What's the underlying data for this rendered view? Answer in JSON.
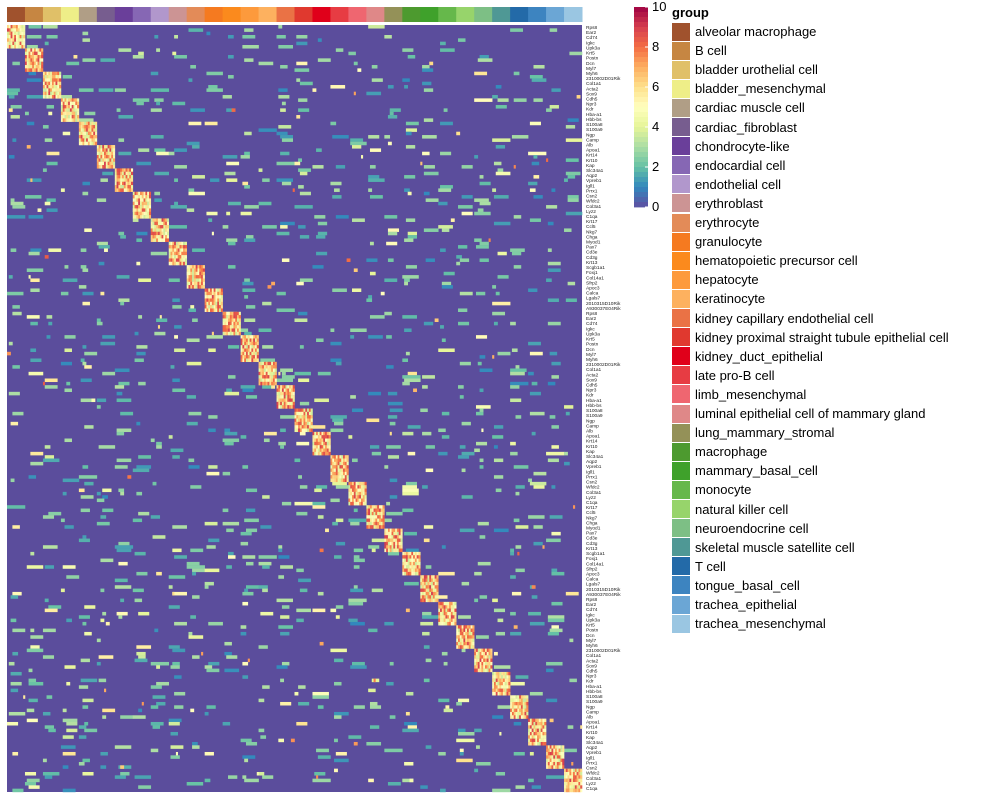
{
  "chart_data": {
    "type": "heatmap",
    "title": "",
    "colorbar": {
      "min": 0,
      "max": 10,
      "tick_labels": [
        "0",
        "2",
        "4",
        "6",
        "8",
        "10"
      ],
      "palette": [
        "#5e4fa2",
        "#3288bd",
        "#66c2a5",
        "#abdda4",
        "#e6f598",
        "#ffffbf",
        "#fee08b",
        "#fdae61",
        "#f46d43",
        "#d53e4f",
        "#9e0142"
      ]
    },
    "legend": {
      "title": "group",
      "placement": "right",
      "items": [
        {
          "label": "alveolar macrophage",
          "color": "#a0522d"
        },
        {
          "label": "B cell",
          "color": "#c68642"
        },
        {
          "label": "bladder urothelial cell",
          "color": "#e0c068"
        },
        {
          "label": "bladder_mesenchymal",
          "color": "#eeee88"
        },
        {
          "label": "cardiac muscle cell",
          "color": "#b09e86"
        },
        {
          "label": "cardiac_fibroblast",
          "color": "#775d8f"
        },
        {
          "label": "chondrocyte-like",
          "color": "#6a3f9a"
        },
        {
          "label": "endocardial cell",
          "color": "#8667b4"
        },
        {
          "label": "endothelial cell",
          "color": "#b197cc"
        },
        {
          "label": "erythroblast",
          "color": "#cc9494"
        },
        {
          "label": "erythrocyte",
          "color": "#e38b58"
        },
        {
          "label": "granulocyte",
          "color": "#f57a20"
        },
        {
          "label": "hematopoietic precursor cell",
          "color": "#fb8a1d"
        },
        {
          "label": "hepatocyte",
          "color": "#fd9a3c"
        },
        {
          "label": "keratinocyte",
          "color": "#fdb15f"
        },
        {
          "label": "kidney capillary endothelial cell",
          "color": "#ea7245"
        },
        {
          "label": "kidney proximal straight tubule epithelial cell",
          "color": "#e0392f"
        },
        {
          "label": "kidney_duct_epithelial",
          "color": "#e0001a"
        },
        {
          "label": "late pro-B cell",
          "color": "#e73c43"
        },
        {
          "label": "limb_mesenchymal",
          "color": "#ef6670"
        },
        {
          "label": "luminal epithelial cell of mammary gland",
          "color": "#df8888"
        },
        {
          "label": "lung_mammary_stromal",
          "color": "#949158"
        },
        {
          "label": "macrophage",
          "color": "#4d9a2f"
        },
        {
          "label": "mammary_basal_cell",
          "color": "#3fa12b"
        },
        {
          "label": "monocyte",
          "color": "#66b84b"
        },
        {
          "label": "natural killer cell",
          "color": "#97d46b"
        },
        {
          "label": "neuroendocrine cell",
          "color": "#7dbf85"
        },
        {
          "label": "skeletal muscle satellite cell",
          "color": "#4f9895"
        },
        {
          "label": "T cell",
          "color": "#236aa8"
        },
        {
          "label": "tongue_basal_cell",
          "color": "#3d84c0"
        },
        {
          "label": "trachea_epithelial",
          "color": "#6ba6d5"
        },
        {
          "label": "trachea_mesenchymal",
          "color": "#9ac6e2"
        }
      ]
    },
    "n_rows": 230,
    "n_groups": 32,
    "columns_per_group": 10,
    "row_labels": [
      "Rps8",
      "Ear2",
      "Cd74",
      "Igkc",
      "Upk3a",
      "Krt5",
      "Postn",
      "Dcn",
      "Myl7",
      "Myh6",
      "2310002D01Rik",
      "Col1a1",
      "Acta2",
      "Sox9",
      "Cdh5",
      "Npr3",
      "Kdr",
      "Hba-a1",
      "Hbb-bs",
      "S100a8",
      "S100a9",
      "Ngp",
      "Camp",
      "Alb",
      "Apoa1",
      "Krt14",
      "Krt10",
      "Kap",
      "Slc34a1",
      "Aqp2",
      "Vpreb1",
      "Igll1",
      "Prrx1",
      "Csn2",
      "Wfdc2",
      "Col3a1",
      "Lyz2",
      "C1qa",
      "Krt17",
      "Ccl5",
      "Nkg7",
      "Chga",
      "Myod1",
      "Pax7",
      "Cd3e",
      "Cd3g",
      "Krt13",
      "Scgb1a1",
      "Foxj1",
      "Col14a1",
      "Sfrp2",
      "Apoc3",
      "Calca",
      "Lgals7",
      "2010315D10Rik",
      "A930037E04Rik"
    ],
    "row_label_note": "gene names printed at ~5px; most illegible in source"
  }
}
